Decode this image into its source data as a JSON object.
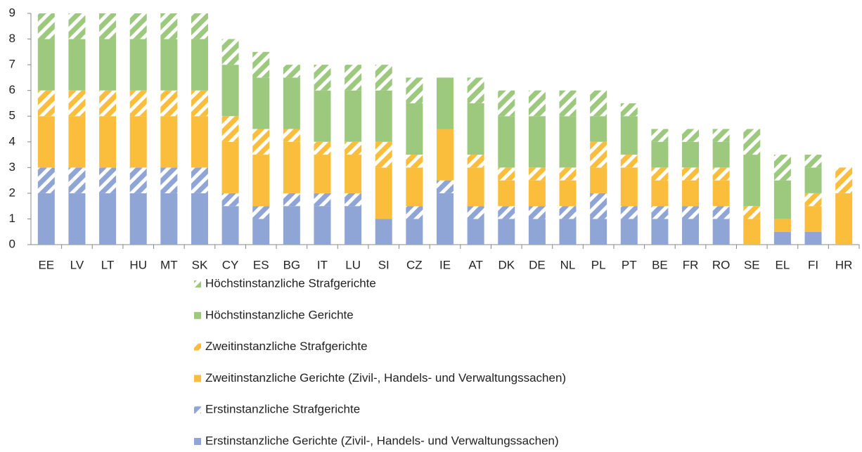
{
  "chart_data": {
    "type": "stacked_bar",
    "categories": [
      "EE",
      "LV",
      "LT",
      "HU",
      "MT",
      "SK",
      "CY",
      "ES",
      "BG",
      "IT",
      "LU",
      "SI",
      "CZ",
      "IE",
      "AT",
      "DK",
      "DE",
      "NL",
      "PL",
      "PT",
      "BE",
      "FR",
      "RO",
      "SE",
      "EL",
      "FI",
      "HR"
    ],
    "ylim": [
      0,
      9
    ],
    "yticks": [
      0,
      1,
      2,
      3,
      4,
      5,
      6,
      7,
      8,
      9
    ],
    "grid": false,
    "series": [
      {
        "name": "Erstinstanzliche Gerichte (Zivil-, Handels- und Verwaltungssachen)",
        "color": "#8fa5d6",
        "hatch": false,
        "values": [
          2,
          2,
          2,
          2,
          2,
          2,
          1.5,
          1,
          1.5,
          1.5,
          1.5,
          1,
          1,
          2,
          1,
          1,
          1,
          1,
          1,
          1,
          1,
          1,
          1,
          0,
          0.5,
          0.5,
          0
        ]
      },
      {
        "name": "Erstinstanzliche Strafgerichte",
        "color": "#8fa5d6",
        "hatch": true,
        "values": [
          1,
          1,
          1,
          1,
          1,
          1,
          0.5,
          0.5,
          0.5,
          0.5,
          0.5,
          0,
          0.5,
          0.5,
          0.5,
          0.5,
          0.5,
          0.5,
          1,
          0.5,
          0.5,
          0.5,
          0.5,
          0,
          0,
          0,
          0
        ]
      },
      {
        "name": "Zweitinstanzliche Gerichte (Zivil-, Handels- und Verwaltungssachen)",
        "color": "#fbbe3c",
        "hatch": false,
        "values": [
          2,
          2,
          2,
          2,
          2,
          2,
          2,
          2,
          2,
          1.5,
          1.5,
          2,
          1.5,
          2,
          1.5,
          1,
          1,
          1,
          1,
          1.5,
          1,
          1,
          1,
          1,
          0.5,
          1,
          2
        ]
      },
      {
        "name": "Zweitinstanzliche Strafgerichte",
        "color": "#fbbe3c",
        "hatch": true,
        "values": [
          1,
          1,
          1,
          1,
          1,
          1,
          1,
          1,
          0.5,
          0.5,
          0.5,
          1,
          0.5,
          0,
          0.5,
          0.5,
          0.5,
          0.5,
          1,
          0.5,
          0.5,
          0.5,
          0.5,
          0.5,
          0,
          0.5,
          1
        ]
      },
      {
        "name": "Höchstinstanzliche Gerichte",
        "color": "#9dc97f",
        "hatch": false,
        "values": [
          2,
          2,
          2,
          2,
          2,
          2,
          2,
          2,
          2,
          2,
          2,
          2,
          2,
          2,
          2,
          2,
          2,
          2,
          1,
          1.5,
          1,
          1,
          1,
          2,
          1.5,
          1,
          0
        ]
      },
      {
        "name": "Höchstinstanzliche Strafgerichte",
        "color": "#9dc97f",
        "hatch": true,
        "values": [
          1,
          1,
          1,
          1,
          1,
          1,
          1,
          1,
          0.5,
          1,
          1,
          1,
          1,
          0,
          1,
          1,
          1,
          1,
          1,
          0.5,
          0.5,
          0.5,
          0.5,
          1,
          1,
          0.5,
          0
        ]
      }
    ]
  }
}
